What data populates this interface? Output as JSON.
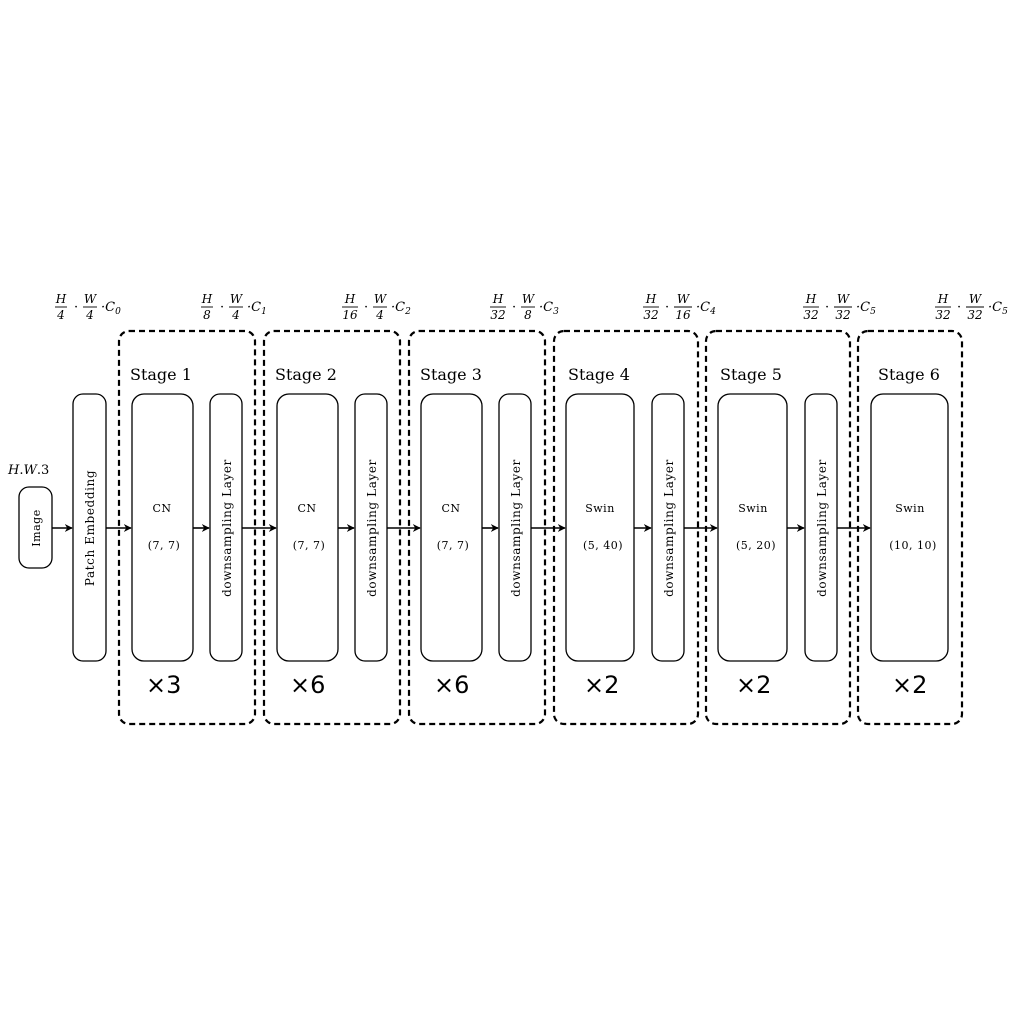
{
  "input": {
    "label": "Image",
    "dims_h": "H",
    "dims_w": "W",
    "dims_c": "3"
  },
  "patch_embedding": {
    "label": "Patch Embedding"
  },
  "dims": [
    {
      "h_den": "4",
      "w_den": "4",
      "c": "0"
    },
    {
      "h_den": "8",
      "w_den": "4",
      "c": "1"
    },
    {
      "h_den": "16",
      "w_den": "4",
      "c": "2"
    },
    {
      "h_den": "32",
      "w_den": "8",
      "c": "3"
    },
    {
      "h_den": "32",
      "w_den": "16",
      "c": "4"
    },
    {
      "h_den": "32",
      "w_den": "32",
      "c": "5"
    },
    {
      "h_den": "32",
      "w_den": "32",
      "c": "5"
    }
  ],
  "stages": [
    {
      "title": "Stage 1",
      "block": "CN",
      "params": "(7, 7)",
      "repeat": "×3",
      "down": "downsampling Layer"
    },
    {
      "title": "Stage 2",
      "block": "CN",
      "params": "(7, 7)",
      "repeat": "×6",
      "down": "downsampling Layer"
    },
    {
      "title": "Stage 3",
      "block": "CN",
      "params": "(7, 7)",
      "repeat": "×6",
      "down": "downsampling Layer"
    },
    {
      "title": "Stage 4",
      "block": "Swin",
      "params": "(5, 40)",
      "repeat": "×2",
      "down": "downsampling Layer"
    },
    {
      "title": "Stage 5",
      "block": "Swin",
      "params": "(5, 20)",
      "repeat": "×2",
      "down": "downsampling Layer"
    },
    {
      "title": "Stage 6",
      "block": "Swin",
      "params": "(10, 10)",
      "repeat": "×2"
    }
  ]
}
